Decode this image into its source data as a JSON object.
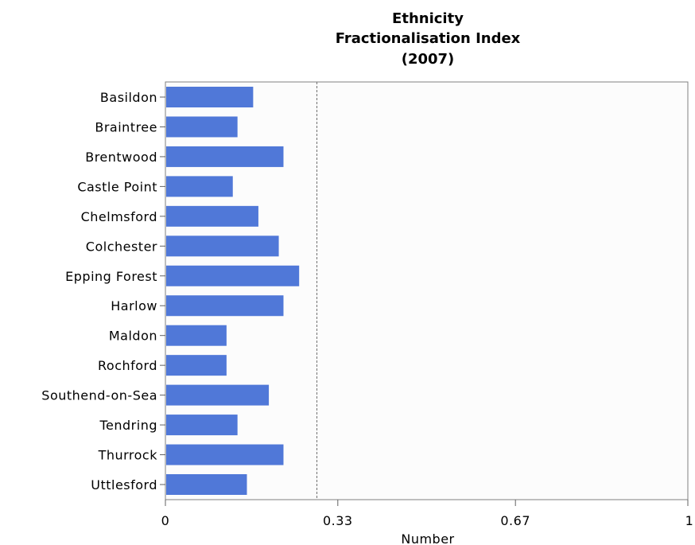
{
  "chart_data": {
    "type": "bar",
    "orientation": "horizontal",
    "title": [
      "Ethnicity",
      "Fractionalisation Index",
      "(2007)"
    ],
    "xlabel": "Number",
    "ylabel": "",
    "xlim": [
      0,
      1
    ],
    "x_ticks": [
      "0",
      "0.33",
      "0.67",
      "1"
    ],
    "x_tick_values": [
      0,
      0.33,
      0.67,
      1
    ],
    "reference_line": 0.29,
    "categories": [
      "Basildon",
      "Braintree",
      "Brentwood",
      "Castle Point",
      "Chelmsford",
      "Colchester",
      "Epping Forest",
      "Harlow",
      "Maldon",
      "Rochford",
      "Southend-on-Sea",
      "Tendring",
      "Thurrock",
      "Uttlesford"
    ],
    "values": [
      0.168,
      0.138,
      0.226,
      0.129,
      0.178,
      0.217,
      0.256,
      0.226,
      0.117,
      0.117,
      0.198,
      0.138,
      0.226,
      0.156
    ],
    "bar_color": "#5078d8",
    "plot_background": "#fcfcfc",
    "grid": false,
    "legend": "none"
  }
}
